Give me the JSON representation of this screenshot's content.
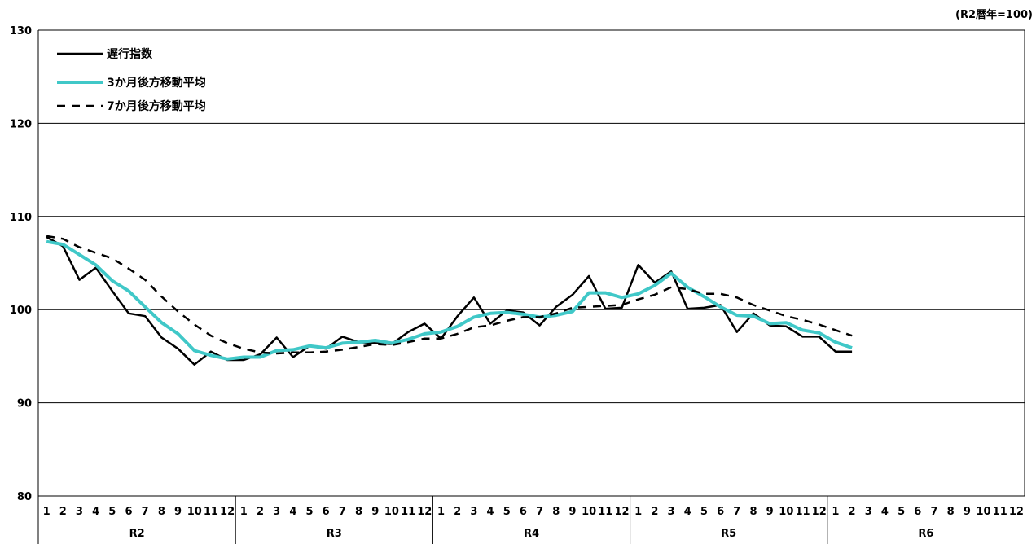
{
  "chart_data": {
    "type": "line",
    "unit_label": "(R2暦年=100)",
    "ylim": [
      80,
      130
    ],
    "yticks": [
      80,
      90,
      100,
      110,
      120,
      130
    ],
    "grid": true,
    "legend_position": "top-left",
    "months": [
      "1",
      "2",
      "3",
      "4",
      "5",
      "6",
      "7",
      "8",
      "9",
      "10",
      "11",
      "12"
    ],
    "years": [
      "R2",
      "R3",
      "R4",
      "R5",
      "R6"
    ],
    "series": [
      {
        "name": "遅行指数",
        "color": "#000000",
        "style": "solid",
        "values": [
          107.8,
          106.8,
          103.2,
          104.5,
          102,
          99.6,
          99.3,
          97,
          95.8,
          94.1,
          95.5,
          94.6,
          94.6,
          95.2,
          97,
          94.9,
          96.1,
          95.8,
          97.1,
          96.5,
          96.4,
          96.3,
          97.6,
          98.5,
          96.9,
          99.3,
          101.3,
          98.5,
          99.9,
          99.7,
          98.3,
          100.3,
          101.6,
          103.6,
          100.1,
          100.2,
          104.8,
          102.9,
          104.1,
          100.1,
          100.2,
          100.5,
          97.6,
          99.6,
          98.3,
          98.2,
          97.1,
          97.1,
          95.5,
          95.5
        ]
      },
      {
        "name": "3か月後方移動平均",
        "color": "#40C8C8",
        "style": "solid",
        "values": [
          107.3,
          107.0,
          105.9,
          104.8,
          103.1,
          102.0,
          100.3,
          98.6,
          97.4,
          95.6,
          95.1,
          94.7,
          94.9,
          94.9,
          95.6,
          95.7,
          96.1,
          95.9,
          96.4,
          96.5,
          96.7,
          96.4,
          96.8,
          97.4,
          97.6,
          98.2,
          99.2,
          99.6,
          99.7,
          99.5,
          99.2,
          99.4,
          99.8,
          101.8,
          101.8,
          101.3,
          101.7,
          102.6,
          103.9,
          102.4,
          101.4,
          100.3,
          99.4,
          99.3,
          98.5,
          98.6,
          97.8,
          97.5,
          96.5,
          95.9
        ]
      },
      {
        "name": "7か月後方移動平均",
        "color": "#000000",
        "style": "dashed",
        "values": [
          107.9,
          107.6,
          106.7,
          106.1,
          105.5,
          104.4,
          103.2,
          101.4,
          99.8,
          98.4,
          97.2,
          96.4,
          95.8,
          95.4,
          95.3,
          95.4,
          95.4,
          95.5,
          95.7,
          96.0,
          96.3,
          96.2,
          96.5,
          96.9,
          96.9,
          97.4,
          98.1,
          98.3,
          98.8,
          99.2,
          99.2,
          99.6,
          100.2,
          100.3,
          100.4,
          100.5,
          101.1,
          101.6,
          102.4,
          102.2,
          101.7,
          101.7,
          101.3,
          100.5,
          99.9,
          99.3,
          98.9,
          98.4,
          97.8,
          97.2
        ]
      }
    ]
  }
}
